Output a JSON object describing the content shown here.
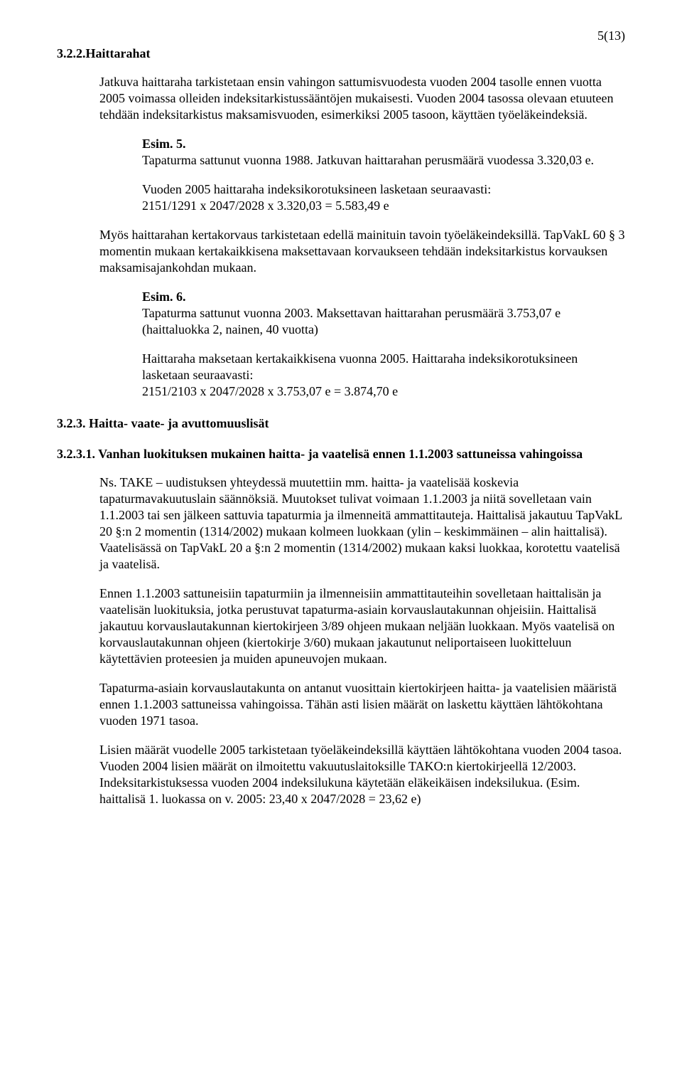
{
  "pageNumber": "5(13)",
  "section322": {
    "heading": "3.2.2.Haittarahat",
    "p1": "Jatkuva haittaraha tarkistetaan ensin vahingon sattumisvuodesta vuoden 2004 tasolle ennen vuotta 2005 voimassa olleiden indeksitarkistussääntöjen mukaisesti. Vuoden 2004 tasossa olevaan etuuteen tehdään indeksitarkistus maksamisvuoden, esimerkiksi 2005 tasoon, käyttäen työeläkeindeksiä.",
    "esim5label": "Esim. 5.",
    "esim5body": "Tapaturma sattunut vuonna 1988. Jatkuvan haittarahan perusmäärä vuodessa 3.320,03 e.",
    "esim5calcIntro": "Vuoden 2005 haittaraha indeksikorotuksineen lasketaan seuraavasti:",
    "esim5calc": "2151/1291 x 2047/2028 x 3.320,03 = 5.583,49 e",
    "p2": "Myös haittarahan kertakorvaus tarkistetaan edellä mainituin tavoin työeläkeindeksillä. TapVakL 60 § 3 momentin mukaan kertakaikkisena maksettavaan korvaukseen tehdään indeksitarkistus korvauksen maksamisajankohdan mukaan.",
    "esim6label": "Esim. 6.",
    "esim6body": "Tapaturma sattunut vuonna 2003. Maksettavan haittarahan perusmäärä 3.753,07 e (haittaluokka 2, nainen, 40 vuotta)",
    "esim6p2": "Haittaraha maksetaan kertakaikkisena vuonna 2005. Haittaraha indeksikorotuksineen lasketaan seuraavasti:",
    "esim6calc": "2151/2103 x 2047/2028 x 3.753,07 e = 3.874,70 e"
  },
  "section323": {
    "heading": "3.2.3. Haitta- vaate- ja avuttomuuslisät"
  },
  "section3231": {
    "heading": "3.2.3.1. Vanhan luokituksen mukainen haitta- ja vaatelisä ennen 1.1.2003 sattuneissa vahingoissa",
    "p1": "Ns. TAKE – uudistuksen yhteydessä muutettiin mm. haitta- ja vaatelisää koskevia tapaturmavakuutuslain säännöksiä. Muutokset tulivat voimaan 1.1.2003 ja niitä sovelletaan vain 1.1.2003 tai sen jälkeen sattuvia tapaturmia ja ilmenneitä ammattitauteja. Haittalisä jakautuu TapVakL 20 §:n 2 momentin (1314/2002) mukaan kolmeen luokkaan (ylin – keskimmäinen – alin haittalisä). Vaatelisässä on TapVakL 20 a §:n 2 momentin (1314/2002) mukaan kaksi luokkaa, korotettu vaatelisä ja vaatelisä.",
    "p2": "Ennen 1.1.2003 sattuneisiin tapaturmiin ja ilmenneisiin ammattitauteihin sovelletaan haittalisän ja vaatelisän luokituksia, jotka perustuvat tapaturma-asiain korvauslautakunnan ohjeisiin. Haittalisä jakautuu korvauslautakunnan kiertokirjeen 3/89 ohjeen mukaan neljään luokkaan. Myös vaatelisä on korvauslautakunnan ohjeen (kiertokirje 3/60) mukaan jakautunut neliportaiseen luokitteluun käytettävien proteesien ja muiden apuneuvojen mukaan.",
    "p3": "Tapaturma-asiain korvauslautakunta on antanut vuosittain kiertokirjeen haitta- ja vaatelisien määristä ennen 1.1.2003 sattuneissa vahingoissa. Tähän asti lisien määrät on laskettu käyttäen lähtökohtana vuoden 1971 tasoa.",
    "p4": "Lisien määrät vuodelle 2005 tarkistetaan työeläkeindeksillä käyttäen lähtökohtana vuoden 2004 tasoa. Vuoden 2004 lisien määrät on ilmoitettu vakuutuslaitoksille TAKO:n kiertokirjeellä 12/2003. Indeksitarkistuksessa vuoden 2004 indeksilukuna käytetään eläkeikäisen indeksilukua. (Esim. haittalisä 1. luokassa on v. 2005: 23,40 x 2047/2028 = 23,62 e)"
  }
}
